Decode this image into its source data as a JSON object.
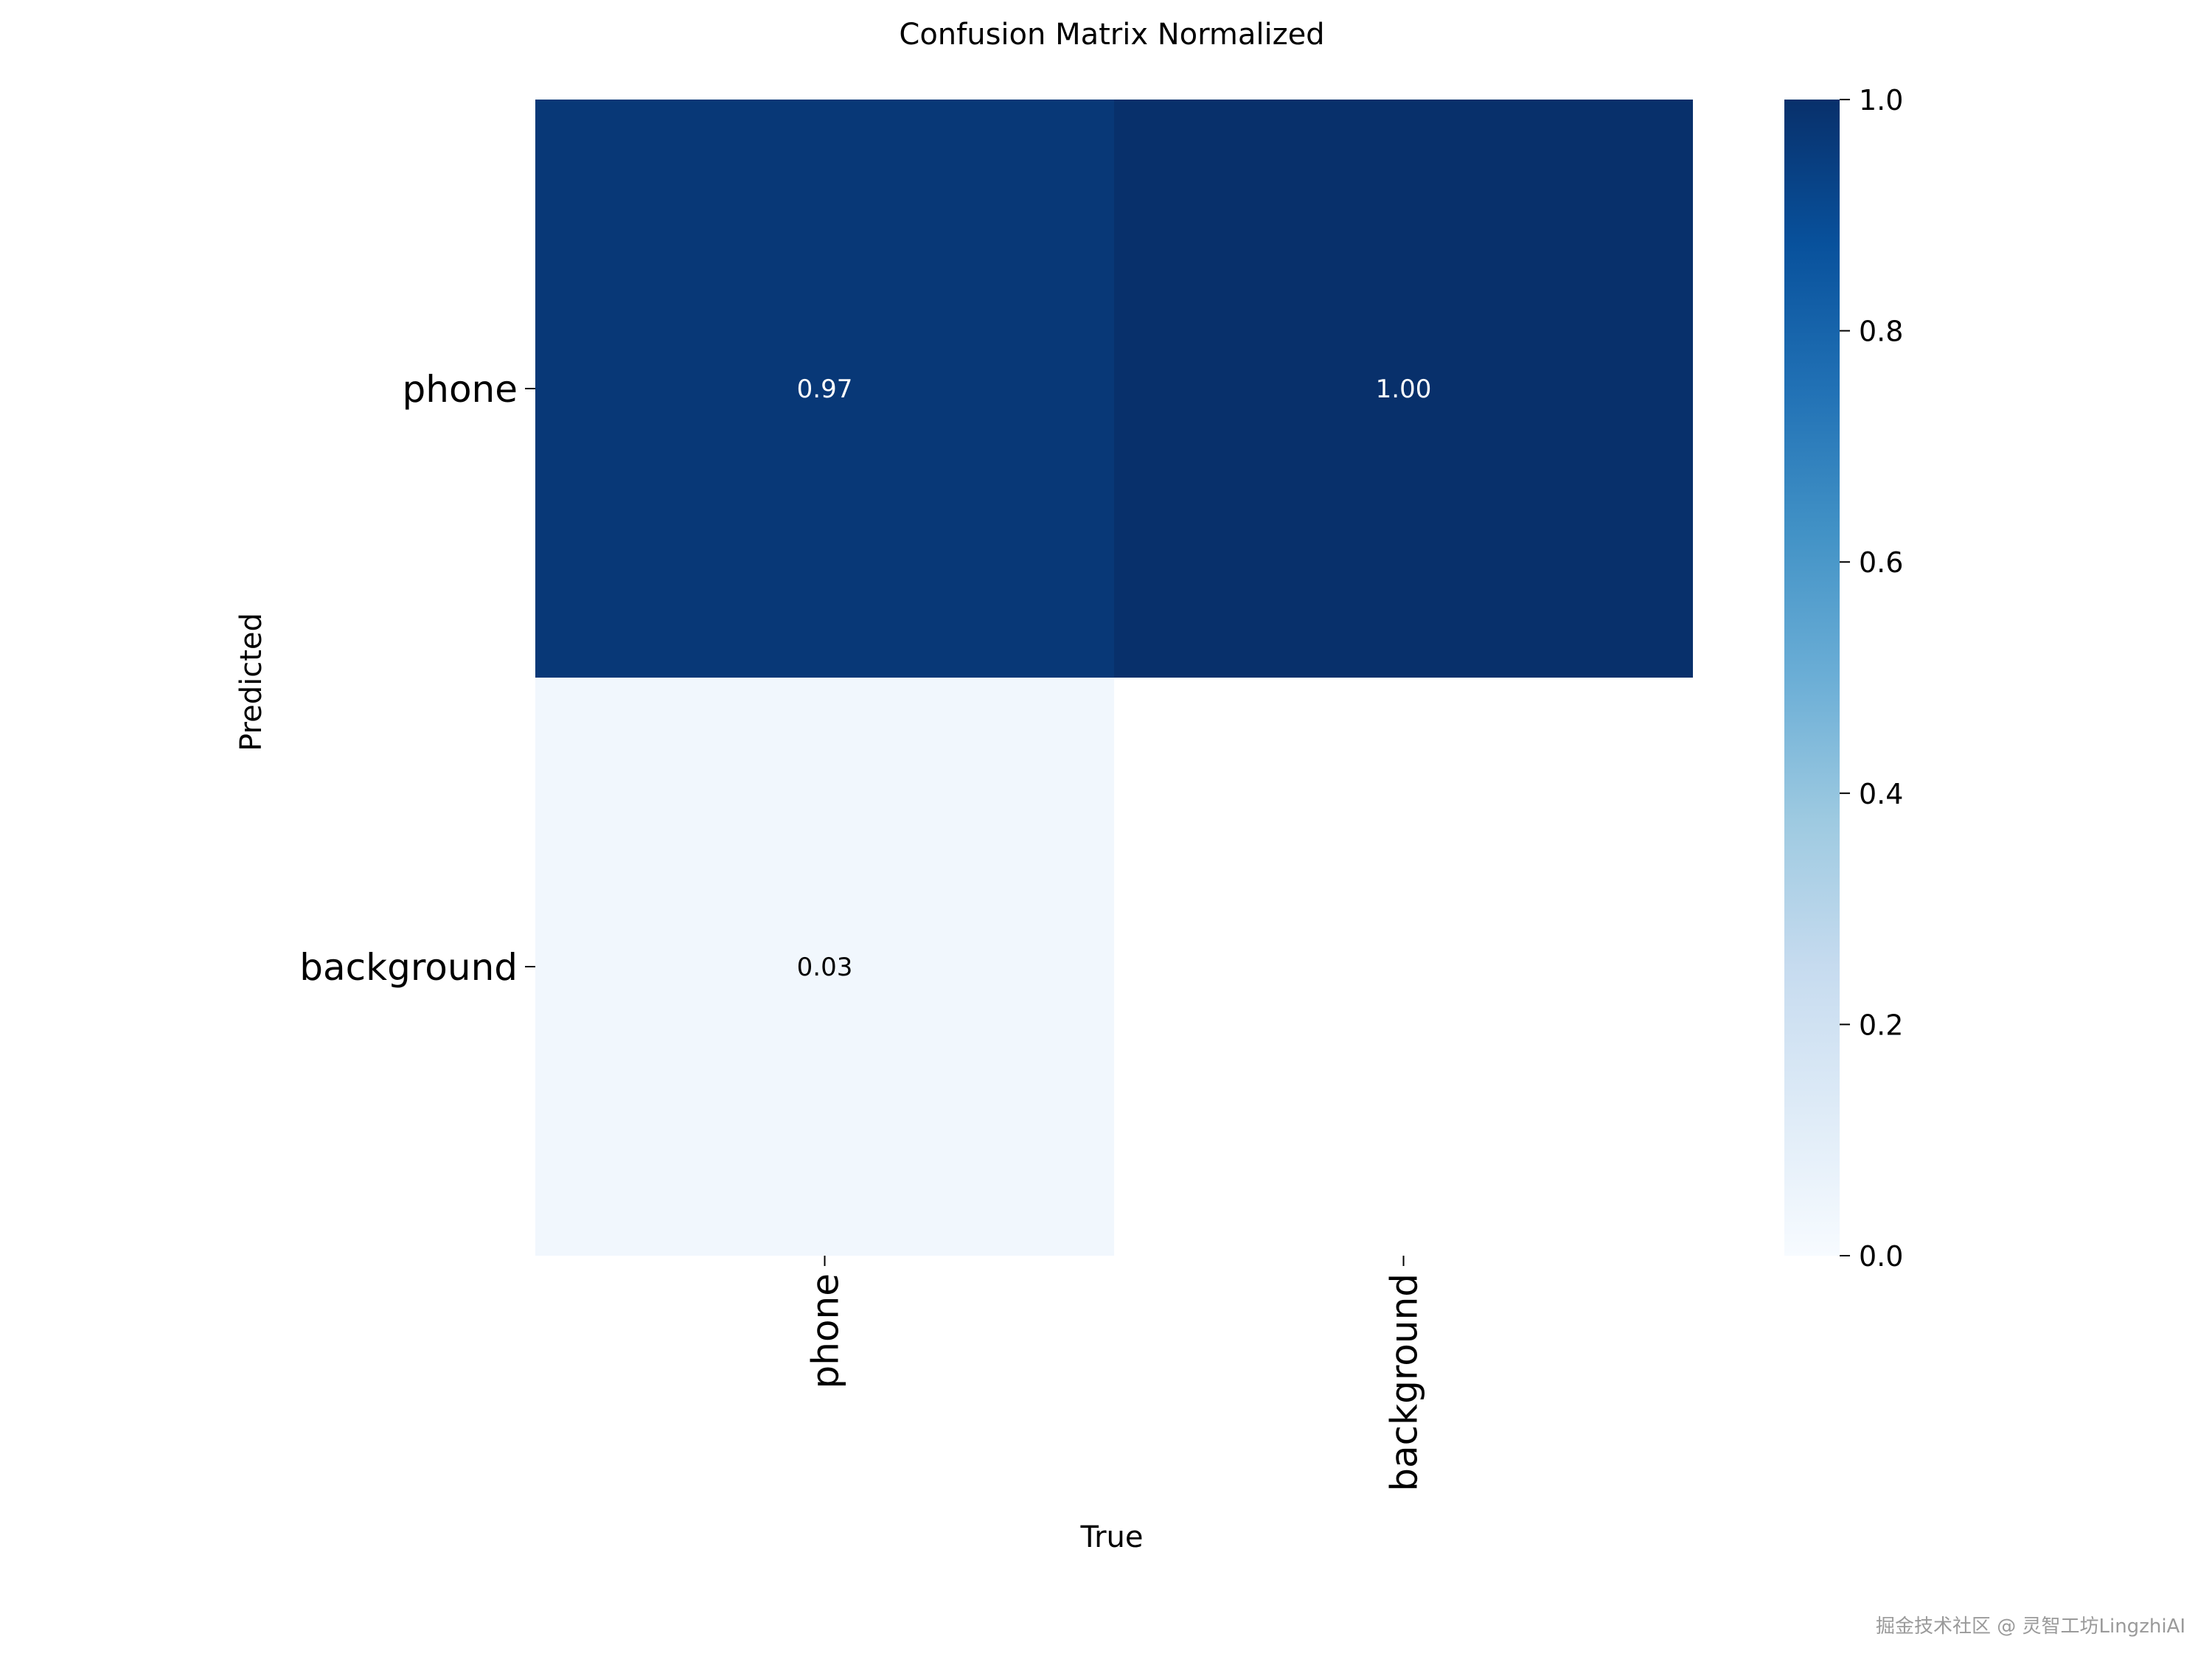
{
  "chart_data": {
    "type": "heatmap",
    "title": "Confusion Matrix Normalized",
    "xlabel": "True",
    "ylabel": "Predicted",
    "x_categories": [
      "phone",
      "background"
    ],
    "y_categories": [
      "phone",
      "background"
    ],
    "values": [
      [
        0.97,
        1.0
      ],
      [
        0.03,
        null
      ]
    ],
    "cell_labels": [
      [
        "0.97",
        "1.00"
      ],
      [
        "0.03",
        ""
      ]
    ],
    "colormap": "Blues",
    "colorbar": {
      "range": [
        0.0,
        1.0
      ],
      "ticks": [
        0.0,
        0.2,
        0.4,
        0.6,
        0.8,
        1.0
      ],
      "tick_labels": [
        "0.0",
        "0.2",
        "0.4",
        "0.6",
        "0.8",
        "1.0"
      ]
    }
  },
  "watermark": "掘金技术社区 @ 灵智工坊LingzhiAI"
}
